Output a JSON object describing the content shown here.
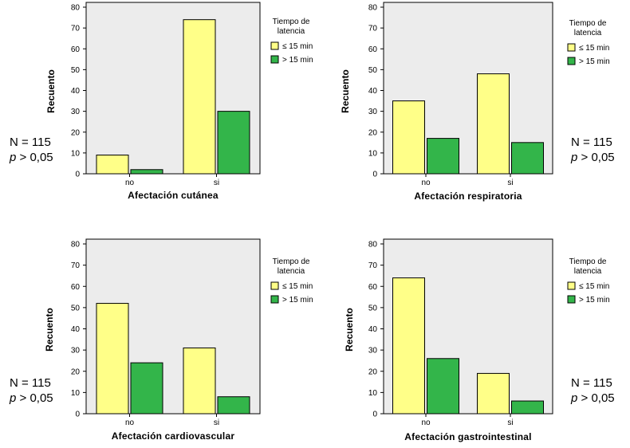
{
  "legend": {
    "title_line1": "Tiempo de",
    "title_line2": "latencia",
    "items": [
      "≤ 15 min",
      "> 15 min"
    ]
  },
  "colors": {
    "le15": "#ffff88",
    "gt15": "#33b54a",
    "plot_bg": "#ececec"
  },
  "ylabel": "Recuento",
  "chart_data": [
    {
      "type": "bar",
      "categories": [
        "no",
        "si"
      ],
      "series": [
        {
          "name": "≤ 15 min",
          "values": [
            9,
            74
          ]
        },
        {
          "name": "> 15 min",
          "values": [
            2,
            30
          ]
        }
      ],
      "xlabel": "Afectación cutánea",
      "ylabel": "Recuento",
      "ylim": [
        0,
        80
      ],
      "yticks": [
        0,
        10,
        20,
        30,
        40,
        50,
        60,
        70,
        80
      ],
      "note_n": "N = 115",
      "note_p_symbol": "p",
      "note_p_rest": " > 0,05"
    },
    {
      "type": "bar",
      "categories": [
        "no",
        "si"
      ],
      "series": [
        {
          "name": "≤ 15 min",
          "values": [
            35,
            48
          ]
        },
        {
          "name": "> 15 min",
          "values": [
            17,
            15
          ]
        }
      ],
      "xlabel": "Afectación respiratoria",
      "ylabel": "Recuento",
      "ylim": [
        0,
        80
      ],
      "yticks": [
        0,
        10,
        20,
        30,
        40,
        50,
        60,
        70,
        80
      ],
      "note_n": "N = 115",
      "note_p_symbol": "p",
      "note_p_rest": " > 0,05"
    },
    {
      "type": "bar",
      "categories": [
        "no",
        "si"
      ],
      "series": [
        {
          "name": "≤ 15 min",
          "values": [
            52,
            31
          ]
        },
        {
          "name": "> 15 min",
          "values": [
            24,
            8
          ]
        }
      ],
      "xlabel": "Afectación cardiovascular",
      "ylabel": "Recuento",
      "ylim": [
        0,
        80
      ],
      "yticks": [
        0,
        10,
        20,
        30,
        40,
        50,
        60,
        70,
        80
      ],
      "note_n": "N = 115",
      "note_p_symbol": "p",
      "note_p_rest": " > 0,05"
    },
    {
      "type": "bar",
      "categories": [
        "no",
        "si"
      ],
      "series": [
        {
          "name": "≤ 15 min",
          "values": [
            64,
            19
          ]
        },
        {
          "name": "> 15 min",
          "values": [
            26,
            6
          ]
        }
      ],
      "xlabel": "Afectación gastrointestinal",
      "ylabel": "Recuento",
      "ylim": [
        0,
        80
      ],
      "yticks": [
        0,
        10,
        20,
        30,
        40,
        50,
        60,
        70,
        80
      ],
      "note_n": "N = 115",
      "note_p_symbol": "p",
      "note_p_rest": " > 0,05"
    }
  ]
}
